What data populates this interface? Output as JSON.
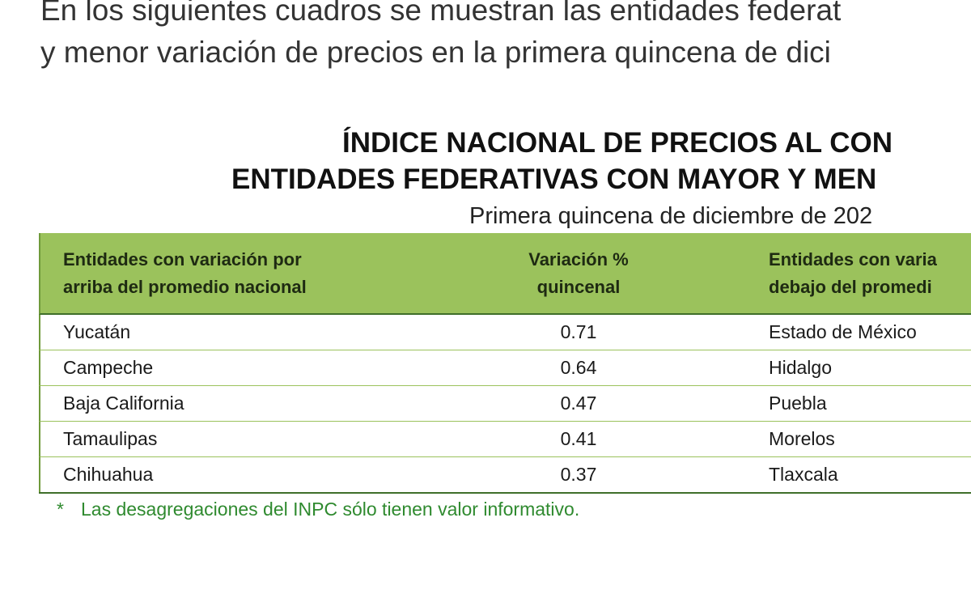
{
  "paragraph": [
    "En los siguientes cuadros se muestran las entidades federat",
    "y menor variación de precios en la primera quincena de dici"
  ],
  "title": [
    "ÍNDICE NACIONAL DE PRECIOS AL CON",
    "ENTIDADES FEDERATIVAS CON MAYOR Y MEN"
  ],
  "subtitle": "Primera quincena de diciembre de 202",
  "table": {
    "headers": [
      [
        "Entidades con variación por",
        "arriba del promedio nacional"
      ],
      [
        "Variación %",
        "quincenal"
      ],
      [
        "Entidades con varia",
        "debajo del promedi"
      ]
    ],
    "rows": [
      [
        "Yucatán",
        0.71,
        "Estado de México"
      ],
      [
        "Campeche",
        0.64,
        "Hidalgo"
      ],
      [
        "Baja California",
        0.47,
        "Puebla"
      ],
      [
        "Tamaulipas",
        0.41,
        "Morelos"
      ],
      [
        "Chihuahua",
        0.37,
        "Tlaxcala"
      ]
    ]
  },
  "footnote": {
    "marker": "*",
    "text": "Las desagregaciones del INPC sólo tienen valor informativo."
  }
}
